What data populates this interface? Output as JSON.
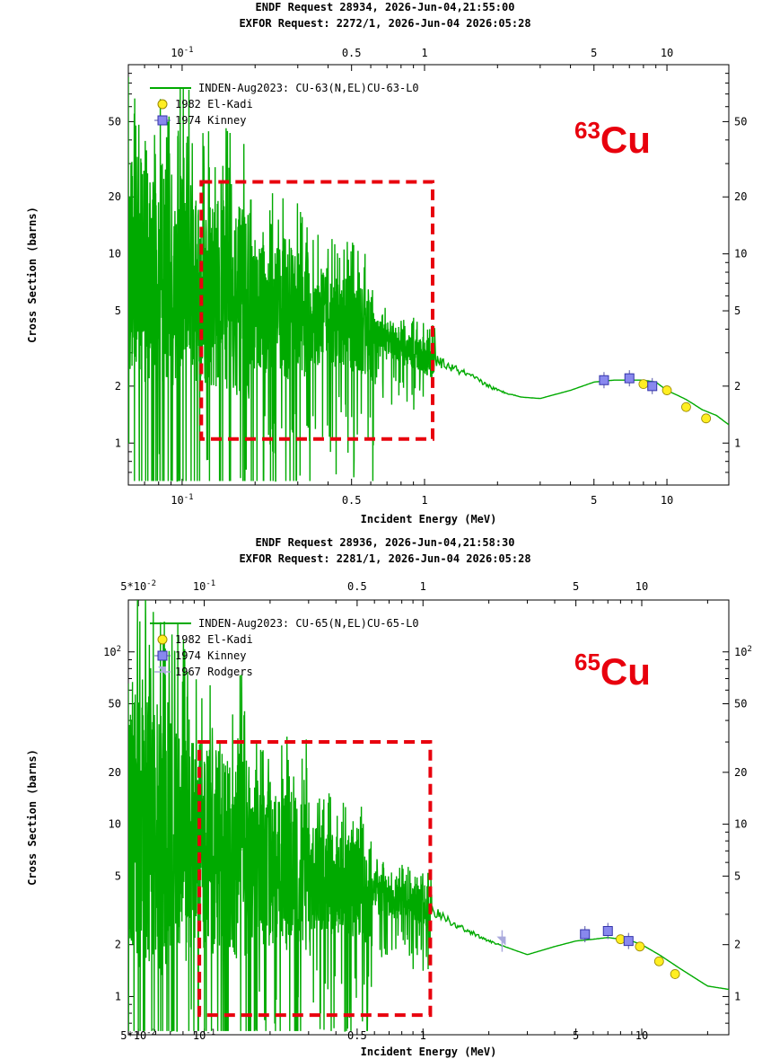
{
  "chart_data": [
    {
      "type": "line",
      "header": [
        "ENDF Request 28934, 2026-Jun-04,21:55:00",
        "EXFOR Request: 2272/1, 2026-Jun-04 2026:05:28"
      ],
      "isotope_mass": "63",
      "isotope_symbol": "Cu",
      "xlabel": "Incident Energy (MeV)",
      "ylabel": "Cross Section (barns)",
      "xscale": "log",
      "yscale": "log",
      "xlim": [
        0.06,
        18
      ],
      "ylim": [
        0.6,
        100
      ],
      "x_ticks": [
        {
          "v": 0.1,
          "b": "10",
          "e": "-1"
        },
        {
          "v": 0.5,
          "t": "0.5"
        },
        {
          "v": 1,
          "t": "1"
        },
        {
          "v": 5,
          "t": "5"
        },
        {
          "v": 10,
          "t": "10"
        }
      ],
      "y_ticks": [
        {
          "v": 1,
          "t": "1"
        },
        {
          "v": 2,
          "t": "2"
        },
        {
          "v": 5,
          "t": "5"
        },
        {
          "v": 10,
          "t": "10"
        },
        {
          "v": 20,
          "t": "20"
        },
        {
          "v": 50,
          "t": "50"
        }
      ],
      "legend_position": "top-left",
      "series": [
        {
          "name": "INDEN-Aug2023: CU-63(N,EL)CU-63-L0",
          "kind": "line",
          "color": "#00aa00",
          "x": [
            0.06,
            0.1,
            0.2,
            0.5,
            1.0,
            1.5,
            2.0,
            2.5,
            3.0,
            4.0,
            5.0,
            6.0,
            7.0,
            8.0,
            9.0,
            10,
            12,
            14,
            16,
            18
          ],
          "y": [
            9.0,
            7.0,
            5.3,
            4.1,
            2.9,
            2.3,
            1.9,
            1.75,
            1.72,
            1.9,
            2.1,
            2.15,
            2.15,
            2.15,
            2.1,
            1.9,
            1.7,
            1.5,
            1.4,
            1.25
          ],
          "resonance_range": [
            0.06,
            1.1
          ],
          "resonance_spread": [
            0.6,
            0.5,
            0.35,
            0.25,
            0.1
          ]
        },
        {
          "name": "1982 El-Kadi",
          "kind": "marker",
          "marker": "circle",
          "color": "#ffee22",
          "x": [
            8.0,
            10.0,
            12.0,
            14.5
          ],
          "y": [
            2.05,
            1.9,
            1.55,
            1.35
          ]
        },
        {
          "name": "1974 Kinney",
          "kind": "marker",
          "marker": "square",
          "color": "#8888ee",
          "x": [
            5.5,
            7.0,
            8.7
          ],
          "y": [
            2.15,
            2.2,
            2.0
          ]
        }
      ],
      "annotation_box": {
        "x": [
          0.12,
          1.08
        ],
        "y": [
          1.05,
          24
        ]
      }
    },
    {
      "type": "line",
      "header": [
        "ENDF Request 28936, 2026-Jun-04,21:58:30",
        "EXFOR Request: 2281/1, 2026-Jun-04 2026:05:28"
      ],
      "isotope_mass": "65",
      "isotope_symbol": "Cu",
      "xlabel": "Incident Energy (MeV)",
      "ylabel": "Cross Section (barns)",
      "xscale": "log",
      "yscale": "log",
      "xlim": [
        0.045,
        25
      ],
      "ylim": [
        0.6,
        200
      ],
      "x_ticks": [
        {
          "v": 0.05,
          "b": "5*10",
          "e": "-2"
        },
        {
          "v": 0.1,
          "b": "10",
          "e": "-1"
        },
        {
          "v": 0.5,
          "t": "0.5"
        },
        {
          "v": 1,
          "t": "1"
        },
        {
          "v": 5,
          "t": "5"
        },
        {
          "v": 10,
          "t": "10"
        }
      ],
      "y_ticks": [
        {
          "v": 1,
          "t": "1"
        },
        {
          "v": 2,
          "t": "2"
        },
        {
          "v": 5,
          "t": "5"
        },
        {
          "v": 10,
          "t": "10"
        },
        {
          "v": 20,
          "t": "20"
        },
        {
          "v": 50,
          "t": "50"
        },
        {
          "v": 100,
          "b": "10",
          "e": "2"
        }
      ],
      "legend_position": "top-left",
      "series": [
        {
          "name": "INDEN-Aug2023: CU-65(N,EL)CU-65-L0",
          "kind": "line",
          "color": "#00aa00",
          "x": [
            0.045,
            0.05,
            0.1,
            0.2,
            0.5,
            1.0,
            1.5,
            2.0,
            2.5,
            3.0,
            4.0,
            5.0,
            6.0,
            7.0,
            8.0,
            9.0,
            10,
            12,
            15,
            20,
            25
          ],
          "y": [
            14,
            9.0,
            7.2,
            5.5,
            4.2,
            3.4,
            2.5,
            2.1,
            1.9,
            1.75,
            1.95,
            2.1,
            2.15,
            2.2,
            2.15,
            2.1,
            2.0,
            1.75,
            1.45,
            1.15,
            1.1
          ],
          "resonance_range": [
            0.045,
            1.1
          ],
          "resonance_spread": [
            0.8,
            0.6,
            0.45,
            0.3,
            0.12
          ]
        },
        {
          "name": "1982 El-Kadi",
          "kind": "marker",
          "marker": "circle",
          "color": "#ffee22",
          "x": [
            8.0,
            9.8,
            12.0,
            14.2
          ],
          "y": [
            2.15,
            1.95,
            1.6,
            1.35
          ]
        },
        {
          "name": "1974 Kinney",
          "kind": "marker",
          "marker": "square",
          "color": "#8888ee",
          "x": [
            5.5,
            7.0,
            8.7
          ],
          "y": [
            2.3,
            2.4,
            2.1
          ]
        },
        {
          "name": "1967 Rodgers",
          "kind": "marker",
          "marker": "tri",
          "color": "#aaaadd",
          "x": [
            2.3
          ],
          "y": [
            2.1
          ]
        }
      ],
      "annotation_box": {
        "x": [
          0.095,
          1.08
        ],
        "y": [
          0.78,
          30
        ]
      }
    }
  ]
}
